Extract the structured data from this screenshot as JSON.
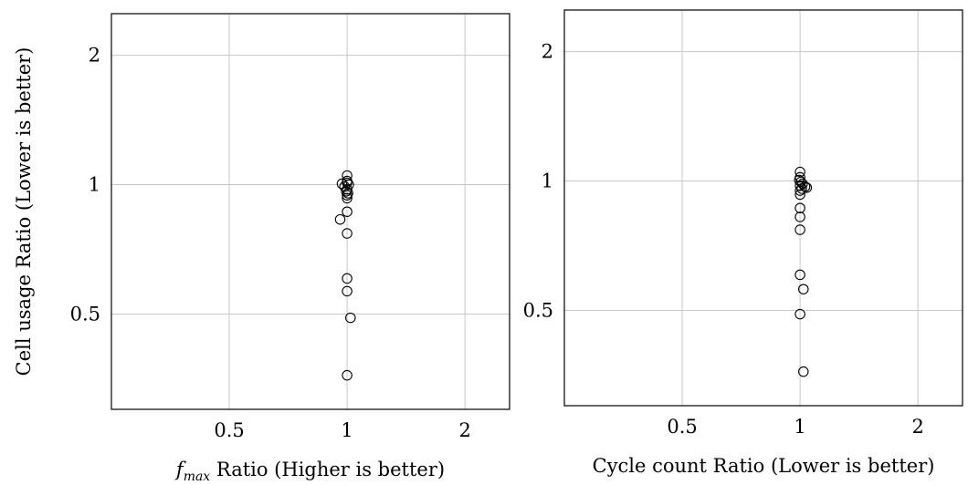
{
  "chart_data": [
    {
      "type": "scatter",
      "xlabel": "f_max Ratio (Higher is better)",
      "xlabel_parts": {
        "f": "f",
        "sub": "max",
        "rest": " Ratio (Higher is better)"
      },
      "ylabel": "Cell usage Ratio (Lower is better)",
      "x_scale": "log",
      "y_scale": "log",
      "xlim": [
        0.25,
        2.6
      ],
      "ylim": [
        0.3,
        2.5
      ],
      "x_ticks": [
        "0.5",
        "1",
        "2"
      ],
      "y_ticks": [
        "0.5",
        "1",
        "2"
      ],
      "grid": true,
      "marker": "open-circle",
      "points": [
        {
          "x": 1.0,
          "y": 1.05
        },
        {
          "x": 1.0,
          "y": 1.02
        },
        {
          "x": 1.0,
          "y": 1.01
        },
        {
          "x": 0.97,
          "y": 1.005
        },
        {
          "x": 0.985,
          "y": 0.99
        },
        {
          "x": 1.01,
          "y": 1.0
        },
        {
          "x": 1.0,
          "y": 0.975
        },
        {
          "x": 0.995,
          "y": 0.965
        },
        {
          "x": 1.005,
          "y": 0.955
        },
        {
          "x": 1.0,
          "y": 0.945
        },
        {
          "x": 1.0,
          "y": 0.93
        },
        {
          "x": 1.0,
          "y": 0.865
        },
        {
          "x": 0.96,
          "y": 0.83
        },
        {
          "x": 1.0,
          "y": 0.77
        },
        {
          "x": 1.0,
          "y": 0.605
        },
        {
          "x": 1.0,
          "y": 0.565
        },
        {
          "x": 1.02,
          "y": 0.49
        },
        {
          "x": 1.0,
          "y": 0.36
        }
      ]
    },
    {
      "type": "scatter",
      "xlabel": "Cycle count Ratio (Lower is better)",
      "ylabel": "",
      "x_scale": "log",
      "y_scale": "log",
      "xlim": [
        0.25,
        2.6
      ],
      "ylim": [
        0.3,
        2.5
      ],
      "x_ticks": [
        "0.5",
        "1",
        "2"
      ],
      "y_ticks": [
        "0.5",
        "1",
        "2"
      ],
      "grid": true,
      "marker": "open-circle",
      "points": [
        {
          "x": 1.0,
          "y": 1.05
        },
        {
          "x": 1.0,
          "y": 1.02
        },
        {
          "x": 0.995,
          "y": 1.005
        },
        {
          "x": 1.005,
          "y": 0.995
        },
        {
          "x": 1.015,
          "y": 0.985
        },
        {
          "x": 1.0,
          "y": 0.975
        },
        {
          "x": 1.03,
          "y": 0.97
        },
        {
          "x": 1.04,
          "y": 0.965
        },
        {
          "x": 1.01,
          "y": 0.96
        },
        {
          "x": 1.0,
          "y": 0.95
        },
        {
          "x": 1.0,
          "y": 0.93
        },
        {
          "x": 1.0,
          "y": 0.865
        },
        {
          "x": 1.0,
          "y": 0.825
        },
        {
          "x": 1.0,
          "y": 0.77
        },
        {
          "x": 1.0,
          "y": 0.605
        },
        {
          "x": 1.02,
          "y": 0.56
        },
        {
          "x": 1.0,
          "y": 0.49
        },
        {
          "x": 1.02,
          "y": 0.36
        }
      ]
    }
  ]
}
